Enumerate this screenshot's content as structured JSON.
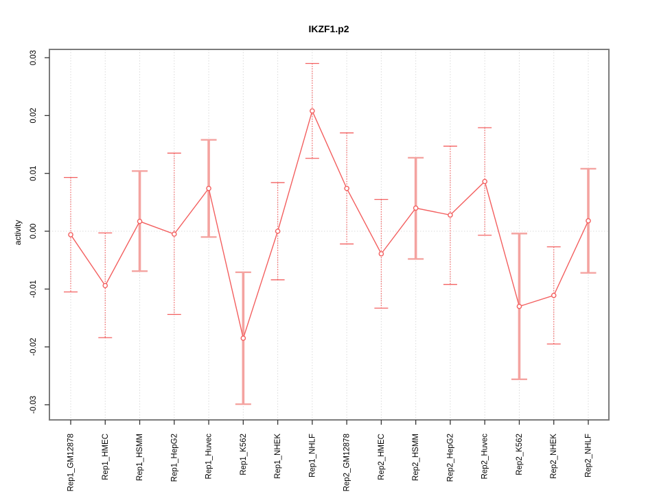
{
  "title": "IKZF1.p2",
  "chart_data": {
    "type": "line",
    "title": "IKZF1.p2",
    "xlabel": "",
    "ylabel": "activity",
    "ylim": [
      -0.031,
      0.031
    ],
    "yticks": [
      {
        "value": 0.03,
        "label": "0.03"
      },
      {
        "value": 0.02,
        "label": "0.02"
      },
      {
        "value": 0.01,
        "label": "0.01"
      },
      {
        "value": 0.0,
        "label": "0.00"
      },
      {
        "value": -0.01,
        "label": "-0.01"
      },
      {
        "value": -0.02,
        "label": "-0.02"
      },
      {
        "value": -0.03,
        "label": "-0.03"
      }
    ],
    "grid": "vertical dotted line at every category, horizontal dotted line at 0 only",
    "legend": "none",
    "categories": [
      "Rep1_GM12878",
      "Rep1_HMEC",
      "Rep1_HSMM",
      "Rep1_HepG2",
      "Rep1_Huvec",
      "Rep1_K562",
      "Rep1_NHEK",
      "Rep1_NHLF",
      "Rep2_GM12878",
      "Rep2_HMEC",
      "Rep2_HSMM",
      "Rep2_HepG2",
      "Rep2_Huvec",
      "Rep2_K562",
      "Rep2_NHEK",
      "Rep2_NHLF"
    ],
    "series": [
      {
        "name": "activity",
        "marker": "open-circle",
        "values": [
          -0.0006,
          -0.0094,
          0.0017,
          -0.0005,
          0.0074,
          -0.0185,
          0.0,
          0.0208,
          0.0074,
          -0.0039,
          0.004,
          0.0028,
          0.0086,
          -0.013,
          -0.0111,
          0.0018
        ],
        "ci_upper": [
          0.0093,
          -0.0003,
          0.0104,
          0.0135,
          0.0158,
          -0.0071,
          0.0084,
          0.029,
          0.017,
          0.0055,
          0.0127,
          0.0147,
          0.0179,
          -0.0004,
          -0.0027,
          0.0108
        ],
        "ci_lower": [
          -0.0105,
          -0.0184,
          -0.0069,
          -0.0144,
          -0.001,
          -0.0299,
          -0.0084,
          0.0126,
          -0.0022,
          -0.0133,
          -0.0048,
          -0.0092,
          -0.0007,
          -0.0256,
          -0.0195,
          -0.0072
        ],
        "whisker_style": [
          "thin",
          "thin",
          "thick",
          "thin",
          "thick",
          "thick",
          "thin",
          "thin",
          "thin",
          "thin",
          "thick",
          "thin",
          "thin",
          "thick",
          "thin",
          "thick"
        ]
      }
    ],
    "colors": {
      "series_red": "#f35f5f",
      "whisker_pink": "#f4a3a0",
      "gridline": "#d9d9d9",
      "frame": "#7b7b7b",
      "tick": "#333333",
      "text": "#000000",
      "background": "#ffffff"
    }
  }
}
